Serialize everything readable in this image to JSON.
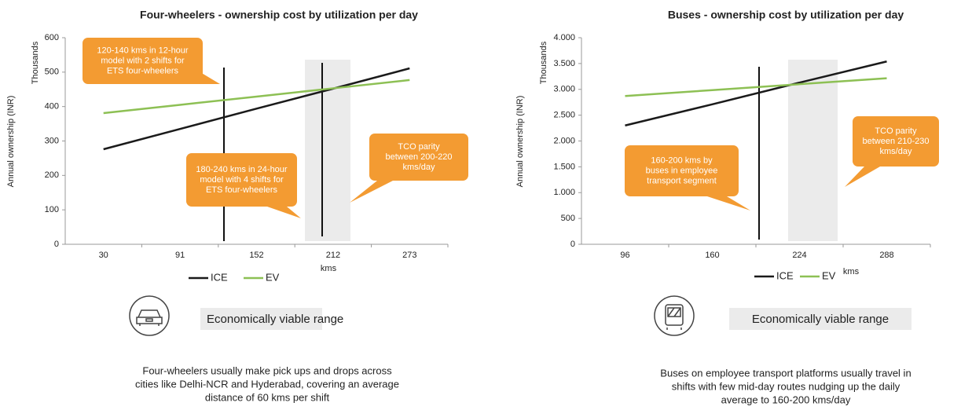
{
  "chart_data": [
    {
      "type": "line",
      "title": "Four-wheelers - ownership cost by utilization per day",
      "y_label": "Annual ownership (INR)",
      "y_unit": "Thousands",
      "x_label": "kms",
      "categories": [
        "30",
        "91",
        "152",
        "212",
        "273"
      ],
      "series": [
        {
          "name": "ICE",
          "color": "#1a1a1a",
          "values": [
            276,
            335,
            394,
            452,
            511
          ]
        },
        {
          "name": "EV",
          "color": "#8dc054",
          "values": [
            381,
            405,
            429,
            453,
            477
          ]
        }
      ],
      "ylim": [
        0,
        600
      ],
      "yticks": [
        0,
        100,
        200,
        300,
        400,
        500,
        600
      ],
      "annotations": [
        [
          "120-140 kms in 12-hour",
          "model with 2 shifts for",
          "ETS four-wheelers"
        ],
        [
          "180-240 kms in 24-hour",
          "model with 4 shifts for",
          "ETS four-wheelers"
        ],
        [
          "TCO parity",
          "between 200-220",
          "kms/day"
        ]
      ]
    },
    {
      "type": "line",
      "title": "Buses - ownership cost by utilization per day",
      "y_label": "Annual ownership (INR)",
      "y_unit": "Thousands",
      "x_label": "kms",
      "categories": [
        "96",
        "160",
        "224",
        "288"
      ],
      "series": [
        {
          "name": "ICE",
          "color": "#1a1a1a",
          "values": [
            2300,
            2710,
            3130,
            3540
          ]
        },
        {
          "name": "EV",
          "color": "#8dc054",
          "values": [
            2870,
            2985,
            3100,
            3215
          ]
        }
      ],
      "ylim": [
        0,
        4000
      ],
      "yticks": [
        0,
        {
          "value": 500,
          "label": "500"
        },
        {
          "value": 1000,
          "label": "1.000"
        },
        {
          "value": 1500,
          "label": "1.500"
        },
        {
          "value": 2000,
          "label": "2.000"
        },
        {
          "value": 2500,
          "label": "2.500"
        },
        {
          "value": 3000,
          "label": "3.000"
        },
        {
          "value": 3500,
          "label": "3.500"
        },
        {
          "value": 4000,
          "label": "4.000"
        }
      ],
      "annotations": [
        [
          "160-200 kms by",
          "buses in employee",
          "transport segment"
        ],
        [
          "TCO parity",
          "between 210-230",
          "kms/day"
        ]
      ]
    }
  ],
  "panels": [
    {
      "badge": "Economically viable range",
      "caption": [
        "Four-wheelers usually make pick ups and drops across",
        "cities like Delhi-NCR and Hyderabad, covering an average",
        "distance of 60 kms per shift"
      ]
    },
    {
      "badge": "Economically viable range",
      "caption": [
        "Buses on employee transport platforms usually travel in",
        "shifts with few mid-day routes nudging up the daily",
        "average to 160-200 kms/day"
      ]
    }
  ]
}
